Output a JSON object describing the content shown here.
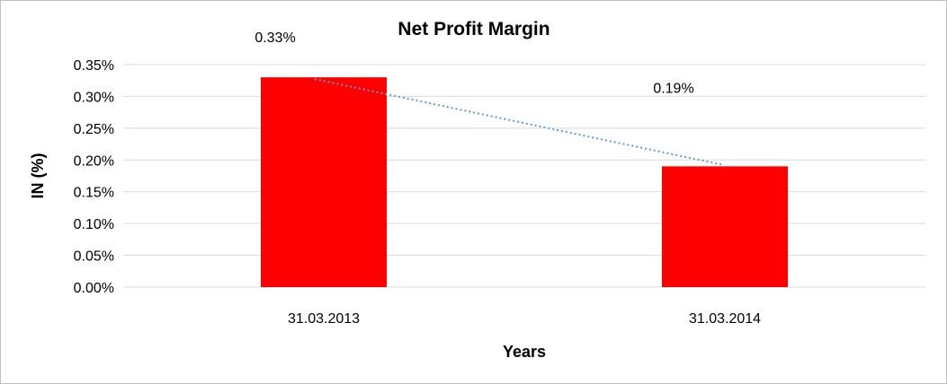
{
  "chart_data": {
    "type": "bar",
    "title": "Net Profit Margin",
    "xlabel": "Years",
    "ylabel": "IN (%)",
    "categories": [
      "31.03.2013",
      "31.03.2014"
    ],
    "series": [
      {
        "values": [
          0.33,
          0.19
        ]
      }
    ],
    "data_labels": [
      "0.33%",
      "0.19%"
    ],
    "ylim": [
      0,
      0.35
    ],
    "yticks": [
      0.0,
      0.05,
      0.1,
      0.15,
      0.2,
      0.25,
      0.3,
      0.35
    ],
    "ytick_labels": [
      "0.00%",
      "0.05%",
      "0.10%",
      "0.15%",
      "0.20%",
      "0.25%",
      "0.30%",
      "0.35%"
    ],
    "trendline": "linear",
    "grid": true,
    "legend": "none",
    "colors": {
      "bar": "#ff0000",
      "trendline": "#5b9bd5",
      "grid": "#d9d9d9",
      "border": "#bfbfbf"
    }
  }
}
